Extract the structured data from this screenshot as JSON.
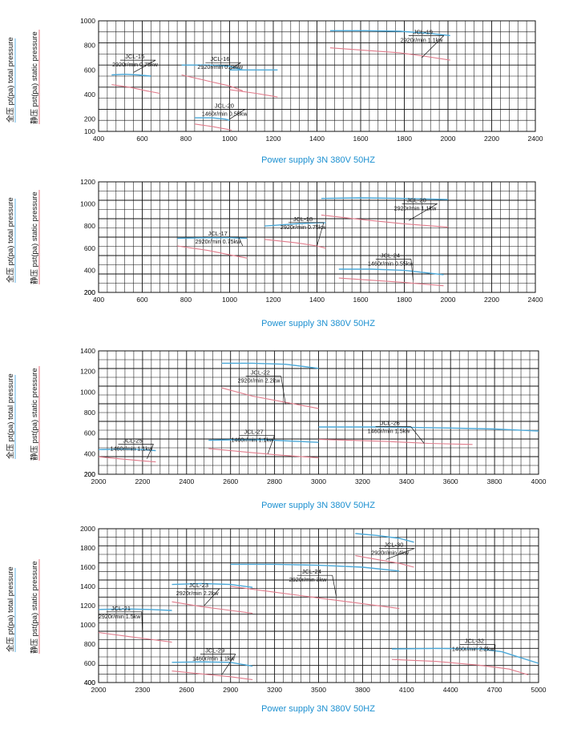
{
  "colors": {
    "total_curve": "#4aa8d8",
    "static_curve": "#e07a8a",
    "grid": "#111111",
    "caption": "#1a8fd0",
    "axis_label_underline_red": "#e14b5a",
    "axis_label_underline_blue": "#3aa0e0"
  },
  "side_label": {
    "total_text": "全压 pt(pa) total pressure",
    "static_text": "静压 pst(pa) static pressure"
  },
  "chart_data": [
    {
      "type": "line",
      "caption": "Power supply  3N 380V  50HZ",
      "xlim": [
        400,
        2400
      ],
      "ylim": [
        100,
        1000
      ],
      "x_ticks": [
        "400",
        "600",
        "800",
        "1000",
        "1200",
        "1400",
        "1600",
        "1800",
        "2000",
        "2200",
        "2400"
      ],
      "y_ticks": [
        "200",
        "400",
        "600",
        "800",
        "1000"
      ],
      "series": [
        {
          "name": "JCL-15",
          "spec": "2920r/min 0.75kw",
          "total": [
            [
              460,
              560
            ],
            [
              520,
              565
            ],
            [
              580,
              560
            ],
            [
              640,
              550
            ]
          ],
          "static": [
            [
              460,
              480
            ],
            [
              540,
              460
            ],
            [
              620,
              430
            ],
            [
              680,
              410
            ]
          ],
          "label": {
            "pos": [
              470,
              660
            ],
            "tip": [
              560,
              580
            ]
          }
        },
        {
          "name": "JCL-16",
          "spec": "2920r/min 0.75kw",
          "total": [
            [
              780,
              640
            ],
            [
              900,
              640
            ],
            [
              1000,
              630
            ],
            [
              1060,
              600
            ]
          ],
          "static": [
            [
              780,
              560
            ],
            [
              900,
              510
            ],
            [
              1000,
              470
            ],
            [
              1060,
              430
            ]
          ],
          "label": {
            "pos": [
              860,
              640
            ],
            "tip": [
              1000,
              600
            ]
          }
        },
        {
          "name": "JCL-16",
          "spec": "",
          "total": [
            [
              1000,
              600
            ],
            [
              1100,
              600
            ],
            [
              1220,
              600
            ]
          ],
          "static": [
            [
              1000,
              440
            ],
            [
              1120,
              410
            ],
            [
              1220,
              380
            ]
          ],
          "label": null
        },
        {
          "name": "JCL-20",
          "spec": "1460r/min 0.55kw",
          "total": [
            [
              840,
              210
            ],
            [
              920,
              210
            ],
            [
              980,
              200
            ],
            [
              1000,
              190
            ]
          ],
          "static": [
            [
              840,
              160
            ],
            [
              920,
              140
            ],
            [
              980,
              120
            ],
            [
              1010,
              110
            ]
          ],
          "label": {
            "pos": [
              880,
              260
            ],
            "tip": [
              1000,
              200
            ]
          }
        },
        {
          "name": "JCL-19",
          "spec": "2920r/min 1.1kw",
          "total": [
            [
              1460,
              920
            ],
            [
              1620,
              920
            ],
            [
              1780,
              915
            ],
            [
              1900,
              900
            ],
            [
              2010,
              880
            ]
          ],
          "static": [
            [
              1460,
              780
            ],
            [
              1620,
              760
            ],
            [
              1780,
              740
            ],
            [
              1900,
              710
            ],
            [
              2010,
              680
            ]
          ],
          "label": {
            "pos": [
              1790,
              860
            ],
            "tip": [
              1880,
              700
            ]
          }
        }
      ]
    },
    {
      "type": "line",
      "caption": "Power supply  3N 380V  50HZ",
      "xlim": [
        400,
        2400
      ],
      "ylim": [
        200,
        1200
      ],
      "x_ticks": [
        "400",
        "600",
        "800",
        "1000",
        "1200",
        "1400",
        "1600",
        "1800",
        "2000",
        "2200",
        "2400"
      ],
      "y_ticks": [
        "200",
        "400",
        "600",
        "800",
        "1000",
        "1200"
      ],
      "series": [
        {
          "name": "JCL-17",
          "spec": "2920r/min 0.75kw",
          "total": [
            [
              760,
              690
            ],
            [
              900,
              695
            ],
            [
              1000,
              695
            ],
            [
              1080,
              690
            ]
          ],
          "static": [
            [
              760,
              620
            ],
            [
              900,
              580
            ],
            [
              1000,
              540
            ],
            [
              1080,
              510
            ]
          ],
          "label": {
            "pos": [
              850,
              680
            ],
            "tip": [
              1060,
              620
            ]
          }
        },
        {
          "name": "JCL-18",
          "spec": "2920r/min 0.75kw",
          "total": [
            [
              1160,
              800
            ],
            [
              1300,
              820
            ],
            [
              1400,
              830
            ],
            [
              1440,
              830
            ]
          ],
          "static": [
            [
              1160,
              680
            ],
            [
              1300,
              650
            ],
            [
              1400,
              620
            ],
            [
              1440,
              600
            ]
          ],
          "label": {
            "pos": [
              1240,
              810
            ],
            "tip": [
              1400,
              620
            ]
          }
        },
        {
          "name": "JCL-20",
          "spec": "2920r/min 1.1kw",
          "total": [
            [
              1420,
              1050
            ],
            [
              1600,
              1055
            ],
            [
              1800,
              1050
            ],
            [
              2000,
              1040
            ]
          ],
          "static": [
            [
              1420,
              900
            ],
            [
              1600,
              860
            ],
            [
              1800,
              820
            ],
            [
              2000,
              790
            ]
          ],
          "label": {
            "pos": [
              1760,
              980
            ],
            "tip": [
              1820,
              850
            ]
          }
        },
        {
          "name": "JCL-24",
          "spec": "1460r/min 0.55kw",
          "total": [
            [
              1500,
              410
            ],
            [
              1650,
              410
            ],
            [
              1800,
              400
            ],
            [
              1980,
              360
            ]
          ],
          "static": [
            [
              1500,
              330
            ],
            [
              1650,
              310
            ],
            [
              1800,
              290
            ],
            [
              1980,
              260
            ]
          ],
          "label": {
            "pos": [
              1640,
              480
            ],
            "tip": [
              1840,
              310
            ]
          }
        }
      ]
    },
    {
      "type": "line",
      "caption": "Power supply  3N 380V  50HZ",
      "xlim": [
        2000,
        4000
      ],
      "ylim": [
        200,
        1400
      ],
      "x_ticks": [
        "2000",
        "2200",
        "2400",
        "2600",
        "2800",
        "3000",
        "3200",
        "3400",
        "3600",
        "3800",
        "4000"
      ],
      "y_ticks": [
        "200",
        "400",
        "600",
        "800",
        "1000",
        "1200",
        "1400"
      ],
      "series": [
        {
          "name": "JCL-25",
          "spec": "1460r/min 1.1kw",
          "total": [
            [
              2000,
              440
            ],
            [
              2100,
              445
            ],
            [
              2200,
              440
            ],
            [
              2260,
              430
            ]
          ],
          "static": [
            [
              2000,
              370
            ],
            [
              2100,
              350
            ],
            [
              2200,
              330
            ],
            [
              2260,
              320
            ]
          ],
          "label": {
            "pos": [
              2060,
              470
            ],
            "tip": [
              2220,
              350
            ]
          }
        },
        {
          "name": "JCL-27",
          "spec": "1460r/min 1.1kw",
          "total": [
            [
              2500,
              530
            ],
            [
              2600,
              535
            ],
            [
              2750,
              535
            ],
            [
              2900,
              520
            ],
            [
              3000,
              510
            ]
          ],
          "static": [
            [
              2500,
              450
            ],
            [
              2650,
              420
            ],
            [
              2800,
              390
            ],
            [
              3000,
              360
            ]
          ],
          "label": {
            "pos": [
              2610,
              555
            ],
            "tip": [
              2770,
              400
            ]
          }
        },
        {
          "name": "JCL-22",
          "spec": "2920r/min 2.2kw",
          "total": [
            [
              2560,
              1280
            ],
            [
              2700,
              1280
            ],
            [
              2850,
              1270
            ],
            [
              3000,
              1230
            ]
          ],
          "static": [
            [
              2560,
              1040
            ],
            [
              2700,
              960
            ],
            [
              2850,
              900
            ],
            [
              3000,
              840
            ]
          ],
          "label": {
            "pos": [
              2640,
              1130
            ],
            "tip": [
              2850,
              880
            ]
          }
        },
        {
          "name": "JCL-26",
          "spec": "1460r/min 1.5kw",
          "total": [
            [
              3000,
              660
            ],
            [
              3300,
              660
            ],
            [
              3600,
              650
            ],
            [
              3800,
              640
            ],
            [
              4000,
              620
            ]
          ],
          "static": [
            [
              3000,
              540
            ],
            [
              3300,
              520
            ],
            [
              3500,
              500
            ],
            [
              3700,
              490
            ]
          ],
          "label": {
            "pos": [
              3230,
              640
            ],
            "tip": [
              3480,
              500
            ]
          }
        }
      ]
    },
    {
      "type": "line",
      "caption": "Power supply  3N 380V  50HZ",
      "xlim": [
        2000,
        5000
      ],
      "ylim": [
        400,
        2000
      ],
      "x_ticks": [
        "2000",
        "2300",
        "2600",
        "2900",
        "3200",
        "3500",
        "3800",
        "4100",
        "4400",
        "4700",
        "5000"
      ],
      "y_ticks": [
        "400",
        "600",
        "800",
        "1000",
        "1200",
        "1400",
        "1600",
        "1800",
        "2000"
      ],
      "series": [
        {
          "name": "JCL-21",
          "spec": "2920r/min 1.5kw",
          "total": [
            [
              2000,
              1160
            ],
            [
              2200,
              1165
            ],
            [
              2350,
              1160
            ],
            [
              2500,
              1150
            ]
          ],
          "static": [
            [
              2000,
              920
            ],
            [
              2200,
              880
            ],
            [
              2350,
              850
            ],
            [
              2500,
              820
            ]
          ],
          "label": {
            "pos": [
              2010,
              1110
            ],
            "tip": [
              2300,
              880
            ]
          }
        },
        {
          "name": "JCL-23",
          "spec": "2920r/min 2.2kw",
          "total": [
            [
              2500,
              1420
            ],
            [
              2700,
              1430
            ],
            [
              2900,
              1420
            ],
            [
              3050,
              1390
            ]
          ],
          "static": [
            [
              2500,
              1240
            ],
            [
              2700,
              1190
            ],
            [
              2900,
              1150
            ],
            [
              3050,
              1120
            ]
          ],
          "label": {
            "pos": [
              2540,
              1350
            ],
            "tip": [
              2720,
              1200
            ]
          }
        },
        {
          "name": "JCL-24",
          "spec": "2920r/min 3kw",
          "total": [
            [
              2900,
              1630
            ],
            [
              3200,
              1630
            ],
            [
              3500,
              1620
            ],
            [
              3800,
              1600
            ],
            [
              4050,
              1560
            ]
          ],
          "static": [
            [
              2900,
              1400
            ],
            [
              3200,
              1340
            ],
            [
              3500,
              1280
            ],
            [
              3800,
              1220
            ],
            [
              4050,
              1170
            ]
          ],
          "label": {
            "pos": [
              3310,
              1490
            ],
            "tip": [
              3620,
              1300
            ]
          }
        },
        {
          "name": "JCL-30",
          "spec": "2920r/min 4kw",
          "total": [
            [
              3750,
              1950
            ],
            [
              3900,
              1930
            ],
            [
              4050,
              1900
            ],
            [
              4150,
              1860
            ]
          ],
          "static": [
            [
              3750,
              1720
            ],
            [
              3900,
              1680
            ],
            [
              4050,
              1640
            ],
            [
              4150,
              1600
            ]
          ],
          "label": {
            "pos": [
              3870,
              1770
            ],
            "tip": [
              3960,
              1680
            ]
          }
        },
        {
          "name": "JCL-29",
          "spec": "1460r/min 1.1kw",
          "total": [
            [
              2500,
              610
            ],
            [
              2700,
              615
            ],
            [
              2900,
              610
            ],
            [
              3050,
              570
            ]
          ],
          "static": [
            [
              2500,
              520
            ],
            [
              2700,
              490
            ],
            [
              2900,
              460
            ],
            [
              3050,
              430
            ]
          ],
          "label": {
            "pos": [
              2650,
              670
            ],
            "tip": [
              2840,
              480
            ]
          }
        },
        {
          "name": "JCL-32",
          "spec": "1460r/min 2.2kw",
          "total": [
            [
              4000,
              750
            ],
            [
              4300,
              755
            ],
            [
              4600,
              750
            ],
            [
              4750,
              720
            ],
            [
              5000,
              600
            ]
          ],
          "static": [
            [
              4000,
              640
            ],
            [
              4300,
              620
            ],
            [
              4600,
              580
            ],
            [
              4800,
              540
            ],
            [
              4930,
              480
            ]
          ],
          "label": {
            "pos": [
              4420,
              770
            ],
            "tip": [
              4700,
              620
            ]
          }
        }
      ]
    }
  ]
}
